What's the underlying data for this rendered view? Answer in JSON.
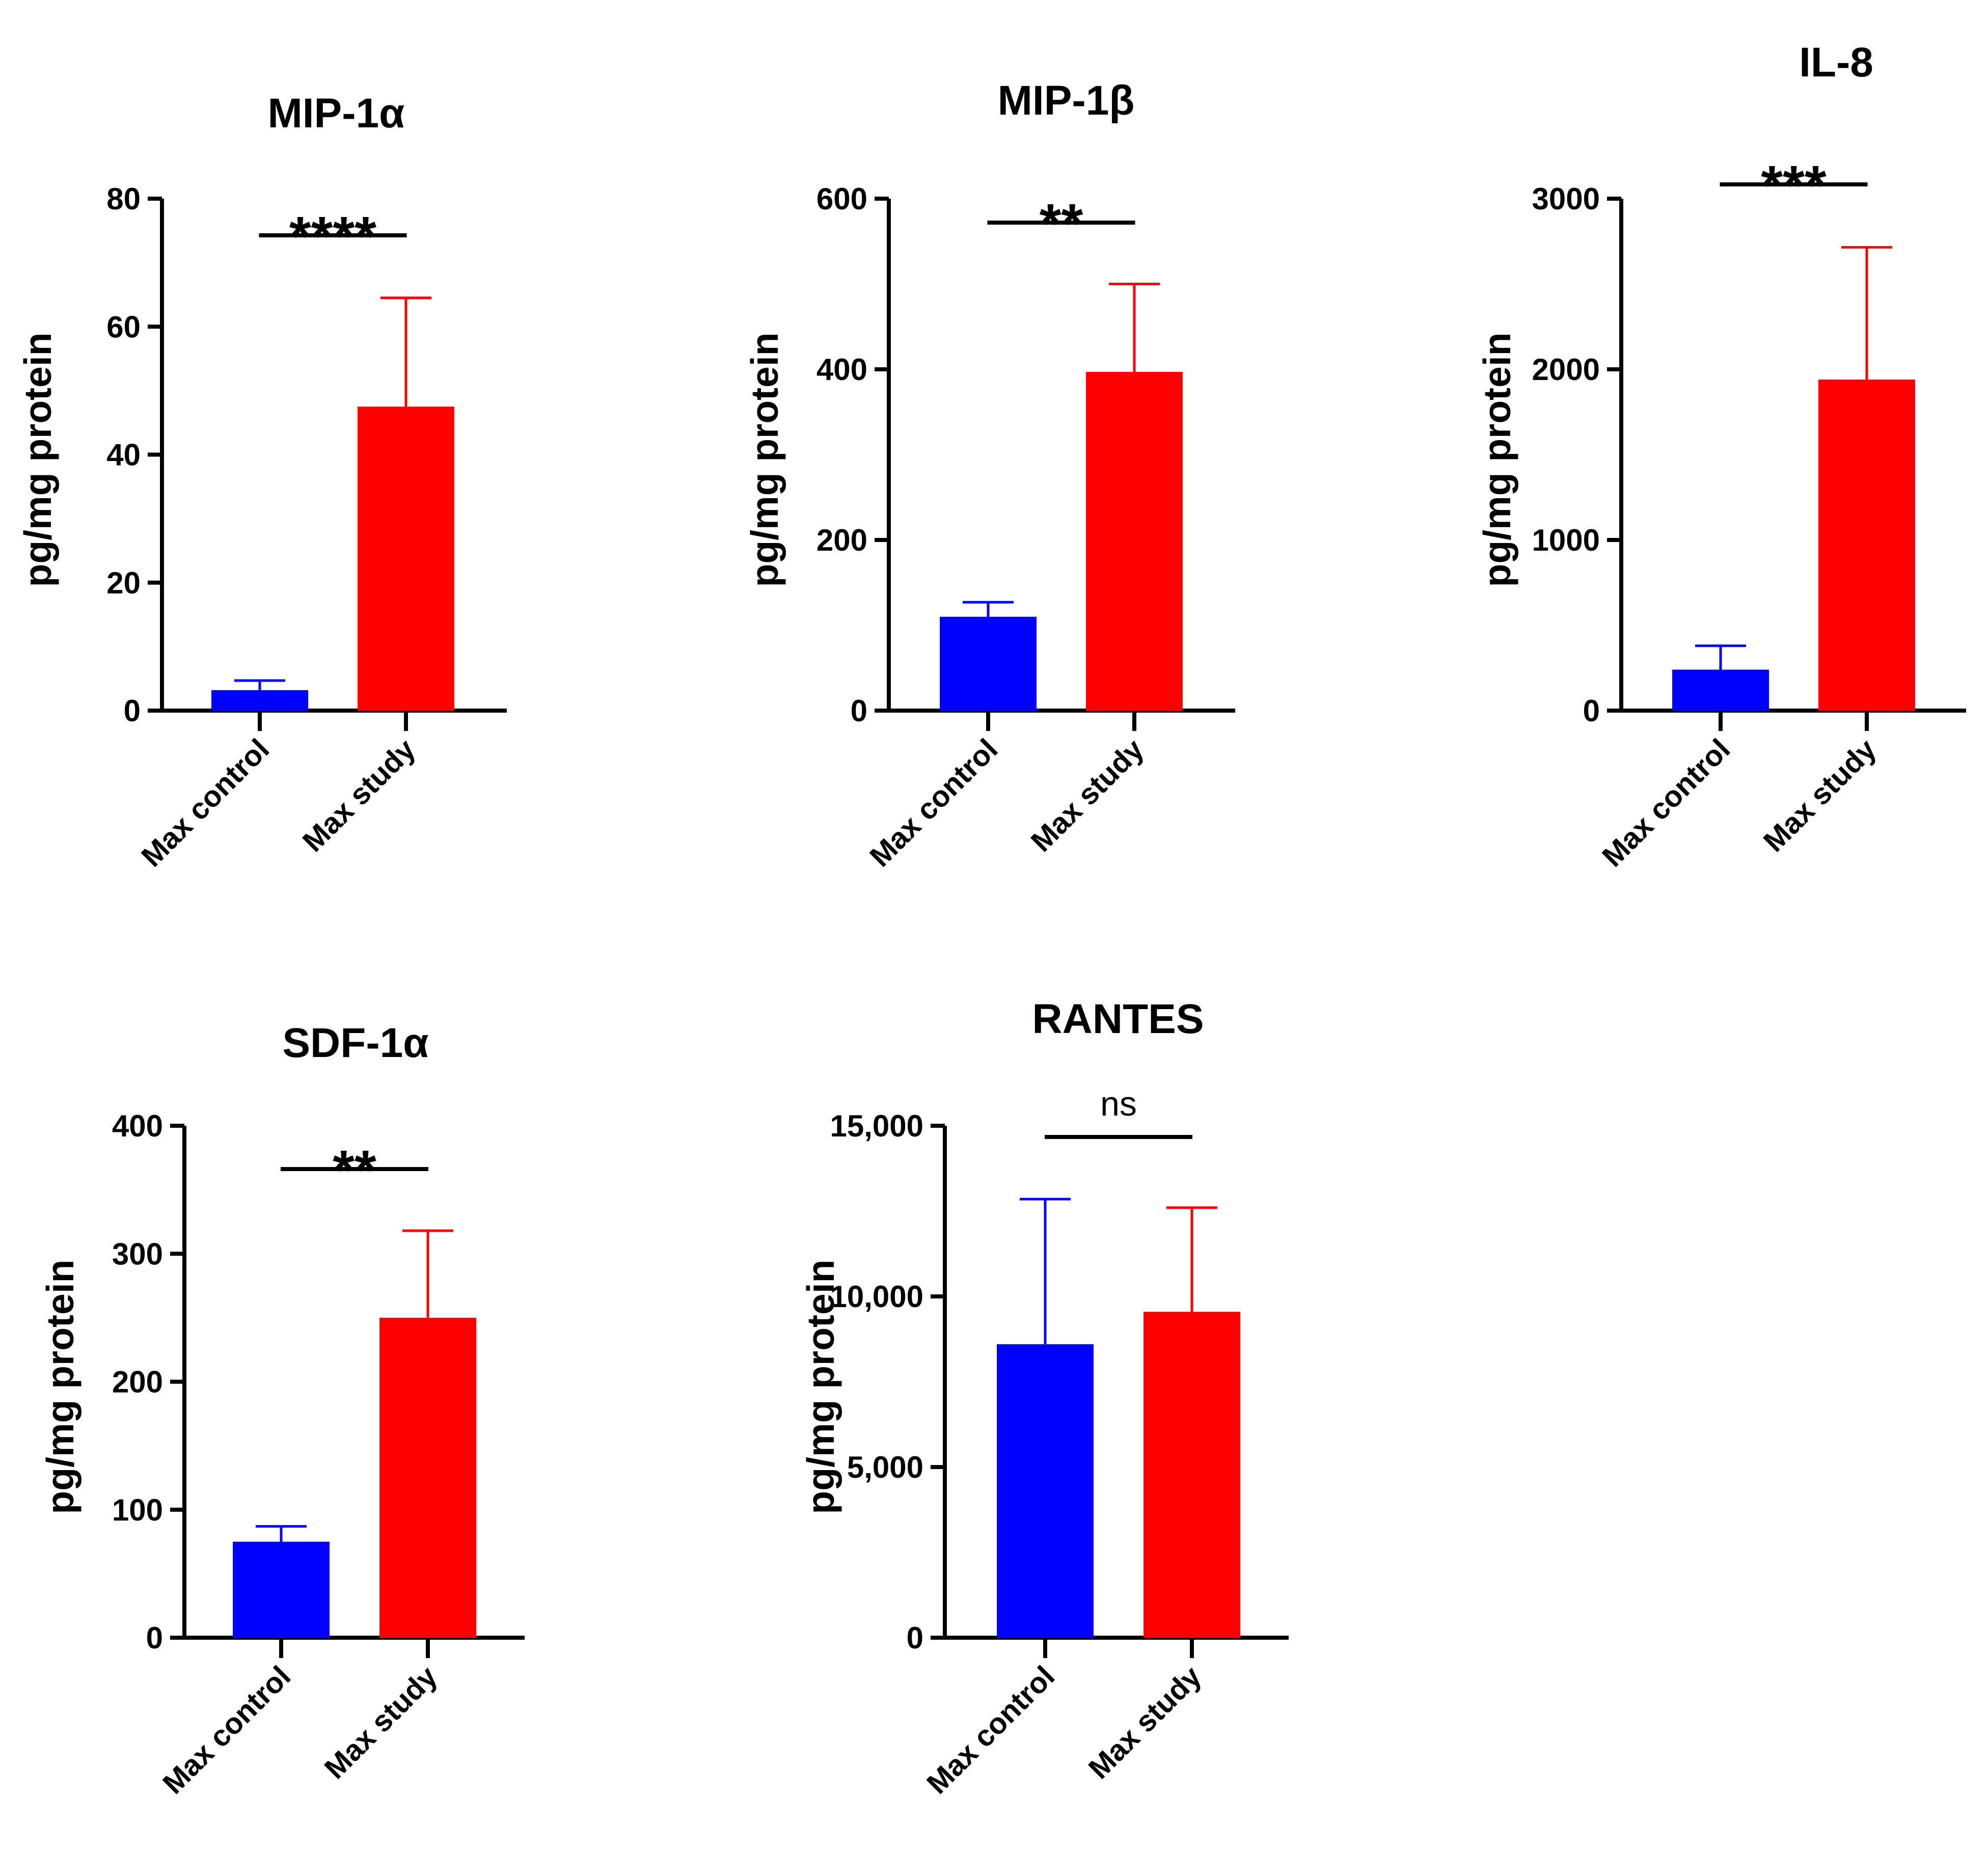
{
  "chart_data": [
    {
      "type": "bar",
      "title": "MIP-1α",
      "ylabel": "pg/mg protein",
      "xlabel": "",
      "categories": [
        "Max control",
        "Max study"
      ],
      "values": [
        3.2,
        47.5
      ],
      "errors": [
        1.5,
        17.0
      ],
      "colors": [
        "#0000ff",
        "#ff0000"
      ],
      "ylim": [
        0,
        80
      ],
      "yticks": [
        0,
        20,
        40,
        60,
        80
      ],
      "ytick_labels": [
        "0",
        "20",
        "40",
        "60",
        "80"
      ],
      "significance": "****"
    },
    {
      "type": "bar",
      "title": "MIP-1β",
      "ylabel": "pg/mg protein",
      "xlabel": "",
      "categories": [
        "Max control",
        "Max study"
      ],
      "values": [
        110,
        397
      ],
      "errors": [
        17,
        103
      ],
      "colors": [
        "#0000ff",
        "#ff0000"
      ],
      "ylim": [
        0,
        600
      ],
      "yticks": [
        0,
        200,
        400,
        600
      ],
      "ytick_labels": [
        "0",
        "200",
        "400",
        "600"
      ],
      "significance": "**"
    },
    {
      "type": "bar",
      "title": "IL-8",
      "ylabel": "pg/mg protein",
      "xlabel": "",
      "categories": [
        "Max control",
        "Max study"
      ],
      "values": [
        240,
        1940
      ],
      "errors": [
        140,
        775
      ],
      "colors": [
        "#0000ff",
        "#ff0000"
      ],
      "ylim": [
        0,
        3000
      ],
      "yticks": [
        0,
        1000,
        2000,
        3000
      ],
      "ytick_labels": [
        "0",
        "1000",
        "2000",
        "3000"
      ],
      "significance": "***"
    },
    {
      "type": "bar",
      "title": "SDF-1α",
      "ylabel": "pg/mg protein",
      "xlabel": "",
      "categories": [
        "Max control",
        "Max study"
      ],
      "values": [
        75,
        250
      ],
      "errors": [
        12,
        68
      ],
      "colors": [
        "#0000ff",
        "#ff0000"
      ],
      "ylim": [
        0,
        400
      ],
      "yticks": [
        0,
        100,
        200,
        300,
        400
      ],
      "ytick_labels": [
        "0",
        "100",
        "200",
        "300",
        "400"
      ],
      "significance": "**"
    },
    {
      "type": "bar",
      "title": "RANTES",
      "ylabel": "pg/mg protein",
      "xlabel": "",
      "categories": [
        "Max control",
        "Max study"
      ],
      "values": [
        8600,
        9550
      ],
      "errors": [
        4250,
        3050
      ],
      "colors": [
        "#0000ff",
        "#ff0000"
      ],
      "ylim": [
        0,
        15000
      ],
      "yticks": [
        0,
        5000,
        10000,
        15000
      ],
      "ytick_labels": [
        "0",
        "5,000",
        "10,000",
        "15,000"
      ],
      "significance": "ns"
    }
  ]
}
